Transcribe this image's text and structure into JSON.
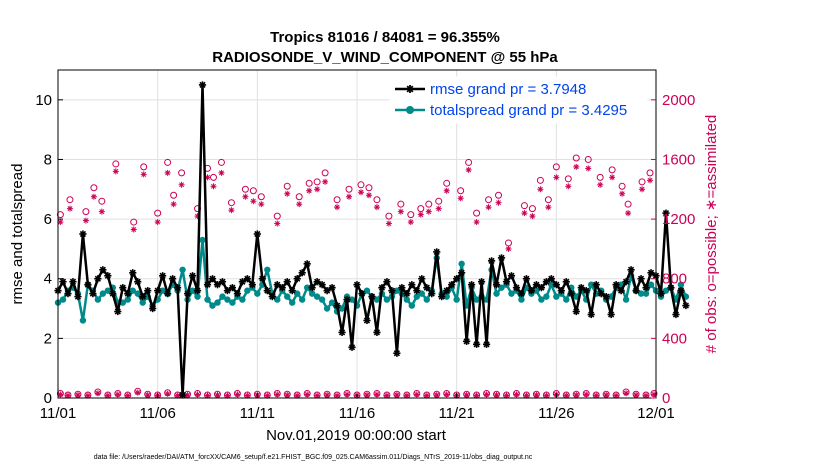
{
  "chart_data": {
    "type": "line",
    "title_line1": "Tropics 81016 / 84081 = 96.355%",
    "title_line2": "RADIOSONDE_V_WIND_COMPONENT @ 55 hPa",
    "xlabel": "Nov.01,2019 00:00:00 start",
    "ylabel": "rmse and totalspread",
    "ylabel_right": "# of obs: o=possible; ∗=assimilated",
    "footnote": "data file: /Users/raeder/DAI/ATM_forcXX/CAM6_setup/f.e21.FHIST_BGC.f09_025.CAM6assim.011/Diags_NTrS_2019-11/obs_diag_output.nc",
    "xlim": [
      0,
      30
    ],
    "ylim": [
      0,
      11
    ],
    "ylim_right": [
      0,
      2200
    ],
    "x_ticks": [
      0,
      5,
      10,
      15,
      20,
      25,
      30
    ],
    "x_tick_labels": [
      "11/01",
      "11/06",
      "11/11",
      "11/16",
      "11/21",
      "11/26",
      "12/01"
    ],
    "y_ticks": [
      0,
      2,
      4,
      6,
      8,
      10
    ],
    "y_tick_labels": [
      "0",
      "2",
      "4",
      "6",
      "8",
      "10"
    ],
    "y_right_ticks": [
      0,
      400,
      800,
      1200,
      1600,
      2000
    ],
    "y_right_tick_labels": [
      "0",
      "400",
      "800",
      "1200",
      "1600",
      "2000"
    ],
    "x_step": 0.25,
    "series": [
      {
        "name": "rmse grand pr = 3.7948",
        "color": "#000000",
        "marker": "asterisk",
        "values": [
          3.6,
          3.9,
          3.5,
          3.9,
          3.4,
          5.5,
          3.8,
          3.5,
          4.0,
          4.3,
          4.1,
          3.5,
          2.9,
          3.7,
          3.5,
          4.2,
          3.9,
          3.4,
          3.6,
          3.0,
          3.6,
          4.1,
          3.5,
          4.0,
          3.7,
          0.1,
          3.5,
          4.1,
          3.6,
          10.5,
          3.8,
          4.0,
          3.8,
          3.9,
          3.6,
          3.7,
          3.5,
          3.9,
          4.0,
          3.8,
          5.5,
          4.0,
          3.6,
          3.4,
          3.8,
          3.7,
          3.9,
          3.6,
          4.0,
          4.2,
          4.5,
          3.7,
          3.9,
          3.8,
          3.6,
          3.7,
          3.1,
          2.2,
          3.3,
          1.7,
          3.8,
          3.5,
          2.6,
          3.4,
          2.2,
          3.7,
          3.9,
          3.6,
          1.5,
          3.7,
          3.5,
          3.8,
          3.6,
          4.0,
          3.7,
          3.5,
          4.9,
          3.4,
          3.6,
          3.8,
          4.0,
          4.2,
          1.9,
          3.8,
          1.8,
          3.9,
          1.8,
          4.6,
          3.8,
          4.7,
          3.9,
          4.1,
          3.7,
          3.5,
          4.0,
          3.6,
          3.8,
          3.7,
          3.9,
          4.0,
          3.8,
          3.6,
          3.9,
          3.5,
          2.9,
          3.7,
          3.6,
          2.8,
          3.8,
          3.5,
          3.4,
          2.8,
          3.8,
          3.6,
          3.9,
          4.3,
          3.6,
          4.0,
          3.7,
          4.2,
          4.1,
          3.5,
          6.2,
          3.7,
          2.8,
          3.6,
          3.1
        ]
      },
      {
        "name": "totalspread grand pr = 3.4295",
        "color": "#008a8a",
        "marker": "circle",
        "values": [
          3.2,
          3.3,
          3.6,
          3.7,
          3.5,
          2.6,
          3.8,
          3.6,
          3.3,
          3.5,
          3.6,
          3.7,
          3.2,
          3.2,
          3.3,
          3.6,
          3.5,
          3.2,
          3.4,
          3.1,
          3.3,
          3.6,
          3.5,
          3.8,
          3.6,
          4.3,
          3.3,
          3.6,
          3.4,
          5.3,
          3.3,
          3.1,
          3.2,
          3.4,
          3.3,
          3.2,
          3.4,
          3.3,
          3.6,
          3.7,
          3.5,
          3.8,
          4.3,
          3.5,
          3.3,
          3.6,
          3.4,
          3.2,
          3.5,
          3.3,
          3.7,
          3.5,
          3.4,
          3.3,
          3.0,
          3.2,
          2.9,
          3.0,
          3.4,
          3.3,
          3.1,
          3.5,
          3.6,
          3.4,
          3.3,
          3.5,
          3.3,
          3.4,
          3.6,
          3.5,
          3.3,
          3.1,
          3.4,
          3.5,
          3.3,
          3.6,
          4.7,
          3.5,
          3.4,
          3.7,
          3.3,
          4.5,
          3.1,
          3.7,
          3.3,
          3.4,
          3.3,
          4.3,
          3.5,
          3.7,
          3.8,
          3.5,
          3.6,
          3.3,
          3.7,
          3.5,
          3.6,
          3.3,
          3.4,
          3.8,
          3.4,
          3.5,
          3.3,
          3.7,
          3.4,
          3.6,
          3.3,
          3.8,
          3.5,
          3.6,
          3.3,
          3.4,
          3.7,
          3.8,
          3.3,
          4.1,
          3.6,
          3.5,
          3.5,
          3.8,
          3.6,
          3.4,
          3.6,
          3.7,
          3.3,
          3.8,
          3.4
        ]
      }
    ],
    "obs_color": "#cc0055",
    "obs_points": [
      {
        "x": 0.12,
        "possible": 1230,
        "assimilated": 1180
      },
      {
        "x": 0.6,
        "possible": 1330,
        "assimilated": 1270
      },
      {
        "x": 1.4,
        "possible": 1250,
        "assimilated": 1190
      },
      {
        "x": 1.8,
        "possible": 1410,
        "assimilated": 1350
      },
      {
        "x": 2.2,
        "possible": 1320,
        "assimilated": 1250
      },
      {
        "x": 2.9,
        "possible": 1570,
        "assimilated": 1520
      },
      {
        "x": 3.8,
        "possible": 1180,
        "assimilated": 1130
      },
      {
        "x": 4.3,
        "possible": 1550,
        "assimilated": 1500
      },
      {
        "x": 5.0,
        "possible": 1240,
        "assimilated": 1180
      },
      {
        "x": 5.5,
        "possible": 1580,
        "assimilated": 1510
      },
      {
        "x": 5.8,
        "possible": 1360,
        "assimilated": 1300
      },
      {
        "x": 6.2,
        "possible": 1510,
        "assimilated": 1430
      },
      {
        "x": 7.0,
        "possible": 1270,
        "assimilated": 1220
      },
      {
        "x": 7.5,
        "possible": 1540,
        "assimilated": 1480
      },
      {
        "x": 7.8,
        "possible": 1480,
        "assimilated": 1420
      },
      {
        "x": 8.2,
        "possible": 1580,
        "assimilated": 1510
      },
      {
        "x": 8.7,
        "possible": 1310,
        "assimilated": 1260
      },
      {
        "x": 9.4,
        "possible": 1400,
        "assimilated": 1350
      },
      {
        "x": 9.8,
        "possible": 1390,
        "assimilated": 1320
      },
      {
        "x": 10.2,
        "possible": 1350,
        "assimilated": 1300
      },
      {
        "x": 11.0,
        "possible": 1220,
        "assimilated": 1170
      },
      {
        "x": 11.5,
        "possible": 1420,
        "assimilated": 1370
      },
      {
        "x": 12.1,
        "possible": 1350,
        "assimilated": 1300
      },
      {
        "x": 12.6,
        "possible": 1440,
        "assimilated": 1390
      },
      {
        "x": 13.0,
        "possible": 1450,
        "assimilated": 1400
      },
      {
        "x": 13.4,
        "possible": 1510,
        "assimilated": 1450
      },
      {
        "x": 14.0,
        "possible": 1330,
        "assimilated": 1280
      },
      {
        "x": 14.6,
        "possible": 1400,
        "assimilated": 1350
      },
      {
        "x": 15.2,
        "possible": 1430,
        "assimilated": 1380
      },
      {
        "x": 15.6,
        "possible": 1410,
        "assimilated": 1360
      },
      {
        "x": 16.0,
        "possible": 1330,
        "assimilated": 1280
      },
      {
        "x": 16.6,
        "possible": 1220,
        "assimilated": 1170
      },
      {
        "x": 17.2,
        "possible": 1300,
        "assimilated": 1250
      },
      {
        "x": 17.7,
        "possible": 1230,
        "assimilated": 1180
      },
      {
        "x": 18.2,
        "possible": 1270,
        "assimilated": 1230
      },
      {
        "x": 18.6,
        "possible": 1300,
        "assimilated": 1250
      },
      {
        "x": 19.1,
        "possible": 1320,
        "assimilated": 1270
      },
      {
        "x": 19.5,
        "possible": 1440,
        "assimilated": 1390
      },
      {
        "x": 20.2,
        "possible": 1390,
        "assimilated": 1340
      },
      {
        "x": 20.6,
        "possible": 1580,
        "assimilated": 1530
      },
      {
        "x": 21.0,
        "possible": 1240,
        "assimilated": 1180
      },
      {
        "x": 21.6,
        "possible": 1330,
        "assimilated": 1280
      },
      {
        "x": 22.1,
        "possible": 1360,
        "assimilated": 1310
      },
      {
        "x": 22.6,
        "possible": 1040,
        "assimilated": 1000
      },
      {
        "x": 23.4,
        "possible": 1290,
        "assimilated": 1240
      },
      {
        "x": 23.8,
        "possible": 1270,
        "assimilated": 1220
      },
      {
        "x": 24.2,
        "possible": 1460,
        "assimilated": 1400
      },
      {
        "x": 24.6,
        "possible": 1330,
        "assimilated": 1280
      },
      {
        "x": 25.0,
        "possible": 1550,
        "assimilated": 1480
      },
      {
        "x": 25.6,
        "possible": 1470,
        "assimilated": 1420
      },
      {
        "x": 26.0,
        "possible": 1610,
        "assimilated": 1550
      },
      {
        "x": 26.6,
        "possible": 1600,
        "assimilated": 1540
      },
      {
        "x": 27.2,
        "possible": 1480,
        "assimilated": 1430
      },
      {
        "x": 27.8,
        "possible": 1530,
        "assimilated": 1480
      },
      {
        "x": 28.3,
        "possible": 1420,
        "assimilated": 1370
      },
      {
        "x": 28.6,
        "possible": 1300,
        "assimilated": 1240
      },
      {
        "x": 29.3,
        "possible": 1450,
        "assimilated": 1400
      },
      {
        "x": 29.7,
        "possible": 1510,
        "assimilated": 1460
      }
    ],
    "obs_bottom_x": [
      0.12,
      0.5,
      1.0,
      1.5,
      2.0,
      2.5,
      3.0,
      3.5,
      4.0,
      4.5,
      5.0,
      5.5,
      6.0,
      6.5,
      7.0,
      7.5,
      8.0,
      8.5,
      9.0,
      9.5,
      10.0,
      10.5,
      11.0,
      11.5,
      12.0,
      12.5,
      13.0,
      13.5,
      14.0,
      14.5,
      15.0,
      15.5,
      16.0,
      16.5,
      17.0,
      17.5,
      18.0,
      18.5,
      19.0,
      19.5,
      20.0,
      20.5,
      21.0,
      21.5,
      22.0,
      22.5,
      23.0,
      23.5,
      24.0,
      24.5,
      25.0,
      25.5,
      26.0,
      26.5,
      27.0,
      27.5,
      28.0,
      28.5,
      29.0,
      29.5,
      29.9
    ],
    "obs_bottom_values": [
      30,
      20,
      25,
      20,
      40,
      20,
      30,
      20,
      45,
      25,
      20,
      35,
      20,
      25,
      30,
      20,
      25,
      20,
      30,
      20,
      25,
      20,
      30,
      25,
      20,
      30,
      20,
      25,
      20,
      30,
      20,
      25,
      30,
      20,
      25,
      20,
      30,
      20,
      25,
      30,
      20,
      25,
      20,
      30,
      25,
      20,
      30,
      20,
      25,
      20,
      30,
      20,
      25,
      30,
      20,
      25,
      20,
      40,
      25,
      20,
      30
    ]
  }
}
